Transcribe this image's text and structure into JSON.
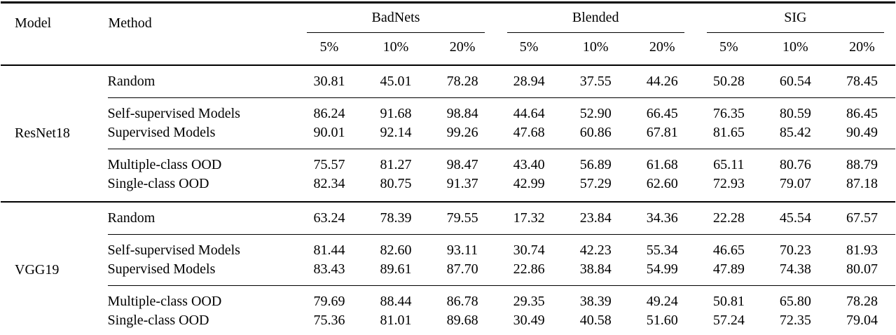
{
  "table": {
    "model_header": "Model",
    "method_header": "Method",
    "groups": [
      {
        "label": "BadNets",
        "subcols": [
          "5%",
          "10%",
          "20%"
        ]
      },
      {
        "label": "Blended",
        "subcols": [
          "5%",
          "10%",
          "20%"
        ]
      },
      {
        "label": "SIG",
        "subcols": [
          "5%",
          "10%",
          "20%"
        ]
      }
    ],
    "sections": [
      {
        "model": "ResNet18",
        "rows": [
          {
            "method": "Random",
            "values": [
              "30.81",
              "45.01",
              "78.28",
              "28.94",
              "37.55",
              "44.26",
              "50.28",
              "60.54",
              "78.45"
            ]
          },
          {
            "method": "Self-supervised Models",
            "values": [
              "86.24",
              "91.68",
              "98.84",
              "44.64",
              "52.90",
              "66.45",
              "76.35",
              "80.59",
              "86.45"
            ]
          },
          {
            "method": "Supervised Models",
            "values": [
              "90.01",
              "92.14",
              "99.26",
              "47.68",
              "60.86",
              "67.81",
              "81.65",
              "85.42",
              "90.49"
            ]
          },
          {
            "method": "Multiple-class OOD",
            "values": [
              "75.57",
              "81.27",
              "98.47",
              "43.40",
              "56.89",
              "61.68",
              "65.11",
              "80.76",
              "88.79"
            ]
          },
          {
            "method": "Single-class OOD",
            "values": [
              "82.34",
              "80.75",
              "91.37",
              "42.99",
              "57.29",
              "62.60",
              "72.93",
              "79.07",
              "87.18"
            ]
          }
        ]
      },
      {
        "model": "VGG19",
        "rows": [
          {
            "method": "Random",
            "values": [
              "63.24",
              "78.39",
              "79.55",
              "17.32",
              "23.84",
              "34.36",
              "22.28",
              "45.54",
              "67.57"
            ]
          },
          {
            "method": "Self-supervised Models",
            "values": [
              "81.44",
              "82.60",
              "93.11",
              "30.74",
              "42.23",
              "55.34",
              "46.65",
              "70.23",
              "81.93"
            ]
          },
          {
            "method": "Supervised Models",
            "values": [
              "83.43",
              "89.61",
              "87.70",
              "22.86",
              "38.84",
              "54.99",
              "47.89",
              "74.38",
              "80.07"
            ]
          },
          {
            "method": "Multiple-class OOD",
            "values": [
              "79.69",
              "88.44",
              "86.78",
              "29.35",
              "38.39",
              "49.24",
              "50.81",
              "65.80",
              "78.28"
            ]
          },
          {
            "method": "Single-class OOD",
            "values": [
              "75.36",
              "81.01",
              "89.68",
              "30.49",
              "40.58",
              "51.60",
              "57.24",
              "72.35",
              "79.04"
            ]
          }
        ]
      }
    ]
  }
}
